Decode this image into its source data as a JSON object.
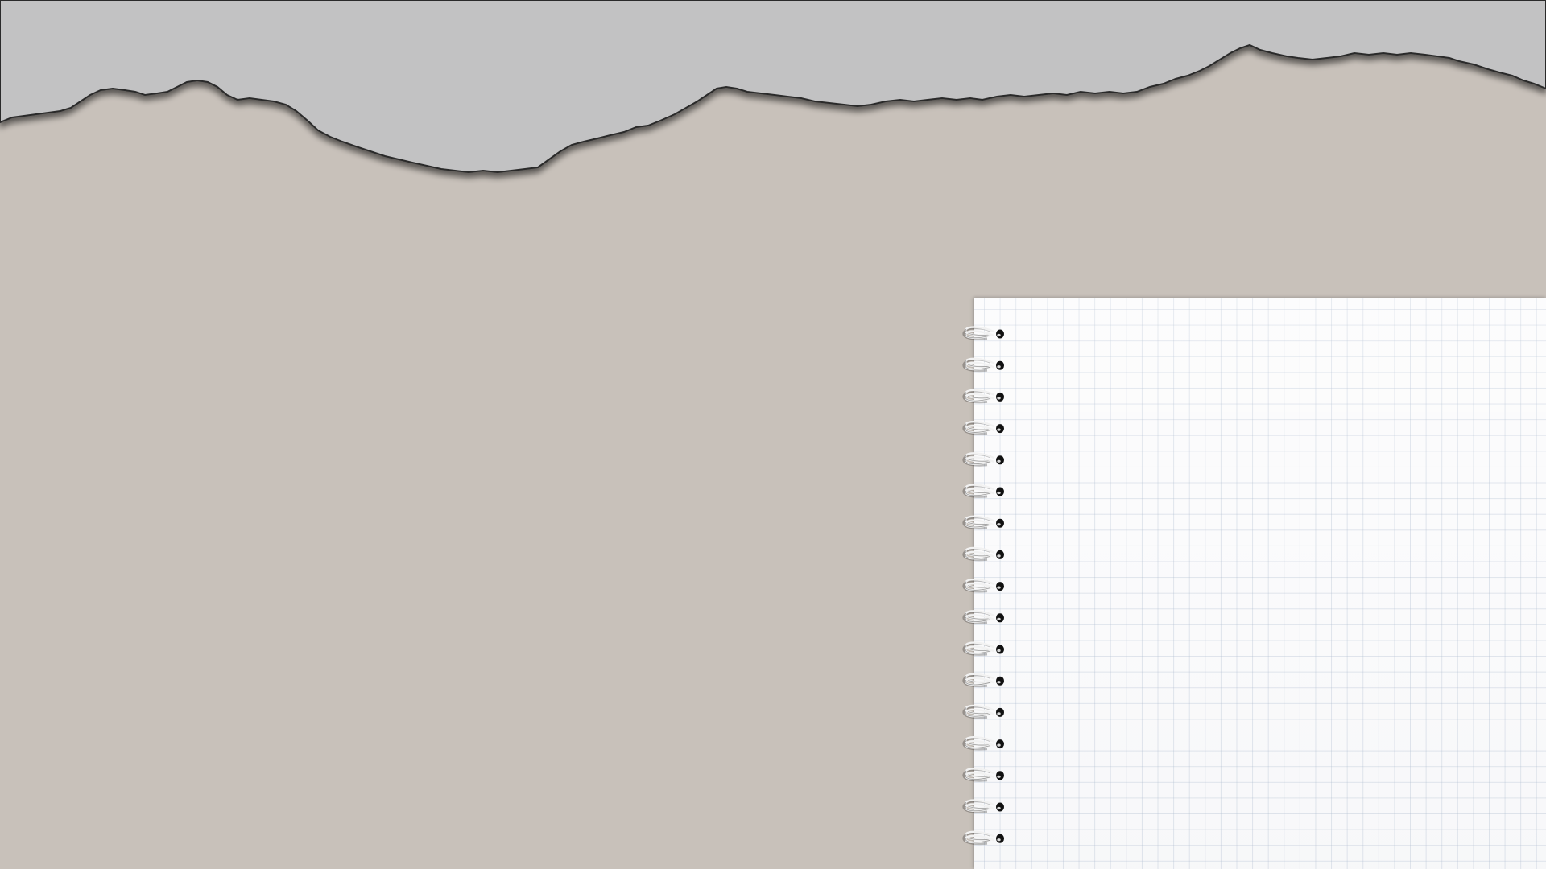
{
  "scene": {
    "description_free": true,
    "colors": {
      "background": "#c8c1ba",
      "torn_paper": "#c2c2c3",
      "torn_edge_shadow": "#1a1a1a",
      "notebook_page": "#fbfbfc",
      "grid_line": "#aab9cd",
      "spiral_wire": "#f2f2f2",
      "spiral_hole": "#111111"
    },
    "icons": [
      "torn-paper-icon",
      "spiral-notebook-icon"
    ],
    "notebook": {
      "spiral_ring_count": 17
    }
  }
}
